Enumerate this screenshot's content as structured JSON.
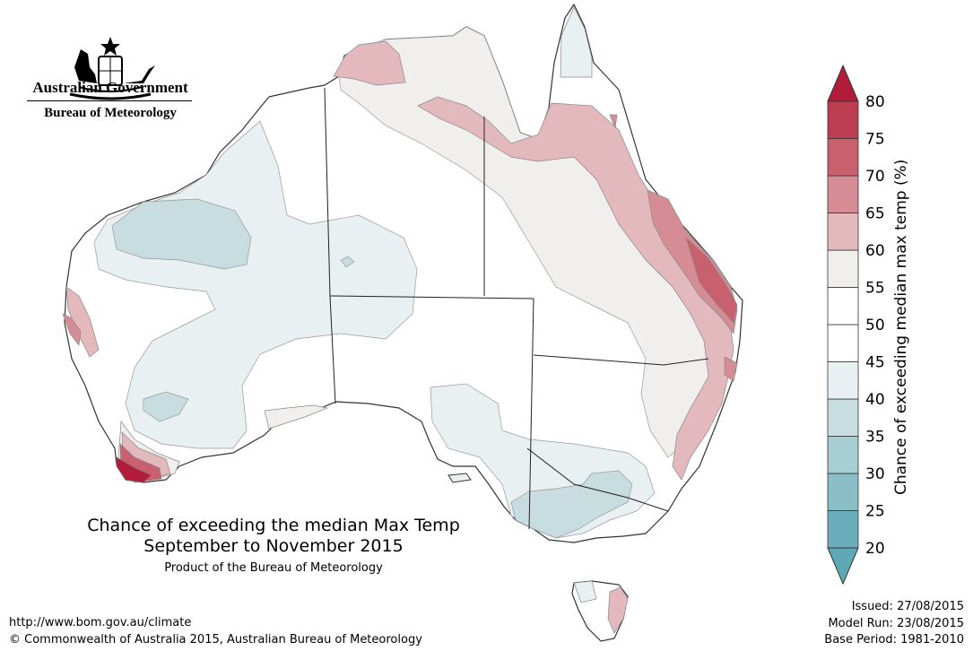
{
  "header": {
    "government": "Australian Government",
    "bureau": "Bureau of Meteorology"
  },
  "map": {
    "title_line1": "Chance of exceeding the median Max Temp",
    "title_line2": "September to November 2015",
    "product": "Product of the Bureau of Meteorology"
  },
  "footer": {
    "url": "http://www.bom.gov.au/climate",
    "copyright": "© Commonwealth of Australia 2015, Australian Bureau of Meteorology",
    "issued": "Issued: 27/08/2015",
    "model_run": "Model Run: 23/08/2015",
    "base_period": "Base Period: 1981-2010"
  },
  "legend": {
    "title": "Chance of exceeding median max temp (%)",
    "ticks": [
      "20",
      "25",
      "30",
      "35",
      "40",
      "45",
      "50",
      "55",
      "60",
      "65",
      "70",
      "75",
      "80"
    ],
    "bands": [
      {
        "range": "20-25",
        "color": "#6aaebb"
      },
      {
        "range": "25-30",
        "color": "#8bbfc7"
      },
      {
        "range": "30-35",
        "color": "#a7ced3"
      },
      {
        "range": "35-40",
        "color": "#c7dde0"
      },
      {
        "range": "40-45",
        "color": "#e8f0f1"
      },
      {
        "range": "45-50",
        "color": "#ffffff"
      },
      {
        "range": "50-55",
        "color": "#ffffff"
      },
      {
        "range": "55-60",
        "color": "#f0efee"
      },
      {
        "range": "60-65",
        "color": "#e3b9be"
      },
      {
        "range": "65-70",
        "color": "#d68c95"
      },
      {
        "range": "70-75",
        "color": "#c9606e"
      },
      {
        "range": "75-80",
        "color": "#bc3d50"
      }
    ],
    "below_color": "#5ea9b5",
    "above_color": "#b11c3b"
  }
}
